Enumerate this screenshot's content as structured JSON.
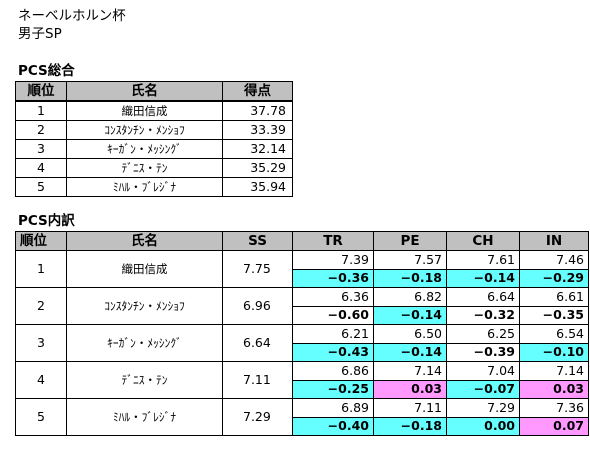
{
  "header": {
    "event": "ネーベルホルン杯",
    "category": "男子SP"
  },
  "summary": {
    "title": "PCS総合",
    "columns": [
      "順位",
      "氏名",
      "得点"
    ],
    "rows": [
      {
        "rank": "1",
        "name": "織田信成",
        "score": "37.78"
      },
      {
        "rank": "2",
        "name": "ｺﾝｽﾀﾝﾁﾝ・ﾒﾝｼｮﾌ",
        "score": "33.39"
      },
      {
        "rank": "3",
        "name": "ｷｰｶﾞﾝ・ﾒｯｼﾝｸﾞ",
        "score": "32.14"
      },
      {
        "rank": "4",
        "name": "ﾃﾞﾆｽ・ﾃﾝ",
        "score": "35.29"
      },
      {
        "rank": "5",
        "name": "ﾐﾊﾙ・ﾌﾞﾚｼﾞﾅ",
        "score": "35.94"
      }
    ]
  },
  "detail": {
    "title": "PCS内訳",
    "columns": [
      "順位",
      "氏名",
      "SS",
      "TR",
      "PE",
      "CH",
      "IN"
    ],
    "rows": [
      {
        "rank": "1",
        "name": "織田信成",
        "ss": "7.75",
        "values": [
          "7.39",
          "7.57",
          "7.61",
          "7.46"
        ],
        "diffs": [
          "−0.36",
          "−0.18",
          "−0.14",
          "−0.29"
        ],
        "signs": [
          "neg",
          "neg",
          "neg",
          "neg"
        ]
      },
      {
        "rank": "2",
        "name": "ｺﾝｽﾀﾝﾁﾝ・ﾒﾝｼｮﾌ",
        "ss": "6.96",
        "values": [
          "6.36",
          "6.82",
          "6.64",
          "6.61"
        ],
        "diffs": [
          "−0.60",
          "−0.14",
          "−0.32",
          "−0.35"
        ],
        "signs": [
          "none",
          "neg",
          "none",
          "none"
        ]
      },
      {
        "rank": "3",
        "name": "ｷｰｶﾞﾝ・ﾒｯｼﾝｸﾞ",
        "ss": "6.64",
        "values": [
          "6.21",
          "6.50",
          "6.25",
          "6.54"
        ],
        "diffs": [
          "−0.43",
          "−0.14",
          "−0.39",
          "−0.10"
        ],
        "signs": [
          "neg",
          "neg",
          "none",
          "neg"
        ]
      },
      {
        "rank": "4",
        "name": "ﾃﾞﾆｽ・ﾃﾝ",
        "ss": "7.11",
        "values": [
          "6.86",
          "7.14",
          "7.04",
          "7.14"
        ],
        "diffs": [
          "−0.25",
          "0.03",
          "−0.07",
          "0.03"
        ],
        "signs": [
          "neg",
          "pos",
          "neg",
          "pos"
        ]
      },
      {
        "rank": "5",
        "name": "ﾐﾊﾙ・ﾌﾞﾚｼﾞﾅ",
        "ss": "7.29",
        "values": [
          "6.89",
          "7.11",
          "7.29",
          "7.36"
        ],
        "diffs": [
          "−0.40",
          "−0.18",
          "0.00",
          "0.07"
        ],
        "signs": [
          "neg",
          "neg",
          "zero",
          "pos"
        ]
      }
    ]
  },
  "colors": {
    "header_bg": "#c0c0c0",
    "negative_highlight": "#66ffff",
    "positive_highlight": "#ff99ff"
  }
}
